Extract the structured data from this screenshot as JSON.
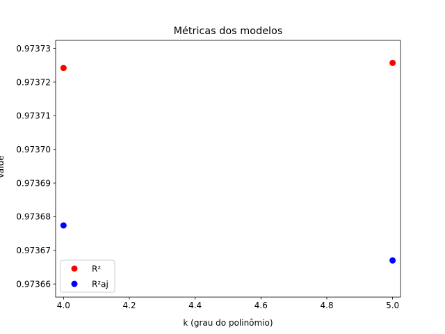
{
  "chart_data": {
    "type": "scatter",
    "title": "Métricas dos modelos",
    "xlabel": "k (grau do polinômio)",
    "ylabel": "Value",
    "xlim": [
      3.976,
      5.024
    ],
    "ylim": [
      0.9736561,
      0.9737324
    ],
    "x_ticks": [
      4.0,
      4.2,
      4.4,
      4.6,
      4.8,
      5.0
    ],
    "x_tick_labels": [
      "4.0",
      "4.2",
      "4.4",
      "4.6",
      "4.8",
      "5.0"
    ],
    "y_ticks": [
      0.97366,
      0.97367,
      0.97368,
      0.97369,
      0.9737,
      0.97371,
      0.97372,
      0.97373
    ],
    "y_tick_labels": [
      "0.97366",
      "0.97367",
      "0.97368",
      "0.97369",
      "0.97370",
      "0.97371",
      "0.97372",
      "0.97373"
    ],
    "grid": false,
    "legend_position": "lower-left",
    "series": [
      {
        "name": "R²",
        "color": "#ff0000",
        "x": [
          4.0,
          5.0
        ],
        "y": [
          0.9737242,
          0.9737257
        ]
      },
      {
        "name": "R²aj",
        "color": "#0000ff",
        "x": [
          4.0,
          5.0
        ],
        "y": [
          0.9736774,
          0.973667
        ]
      }
    ]
  }
}
